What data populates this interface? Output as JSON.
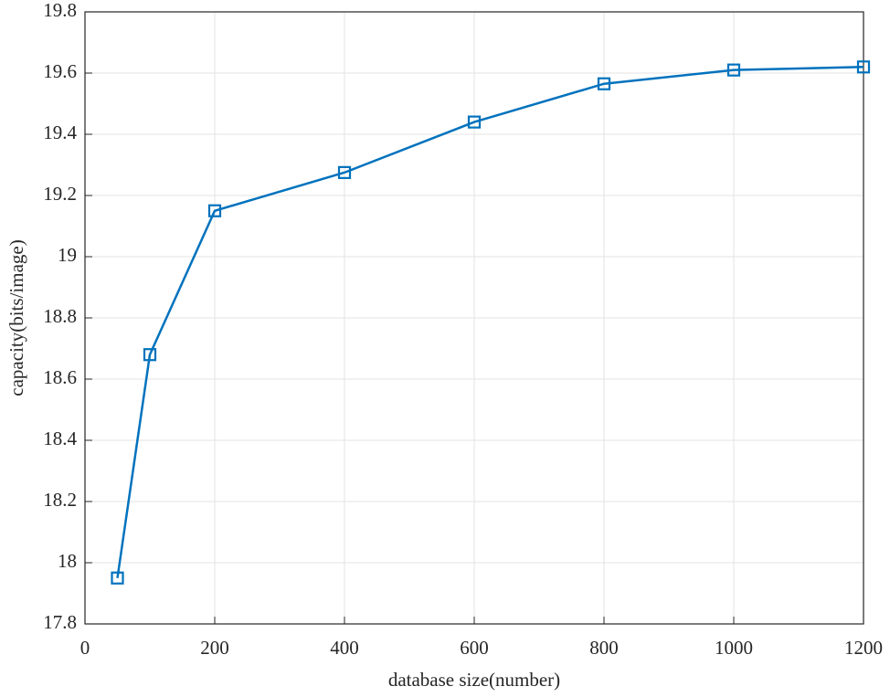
{
  "chart_data": {
    "type": "line",
    "x_label": "database size(number)",
    "y_label": "capacity(bits/image)",
    "x": [
      50,
      100,
      200,
      400,
      600,
      800,
      1000,
      1200
    ],
    "series": [
      {
        "color": "#0072bd",
        "values": [
          17.95,
          18.68,
          19.15,
          19.275,
          19.44,
          19.565,
          19.61,
          19.62
        ]
      }
    ],
    "xlim": [
      0,
      1200
    ],
    "xticks": [
      0,
      200,
      400,
      600,
      800,
      1000,
      1200
    ],
    "ylim": [
      17.8,
      19.8
    ],
    "yticks": [
      17.8,
      18,
      18.2,
      18.4,
      18.6,
      18.8,
      19,
      19.2,
      19.4,
      19.6,
      19.8
    ],
    "grid": true,
    "marker": "square"
  }
}
